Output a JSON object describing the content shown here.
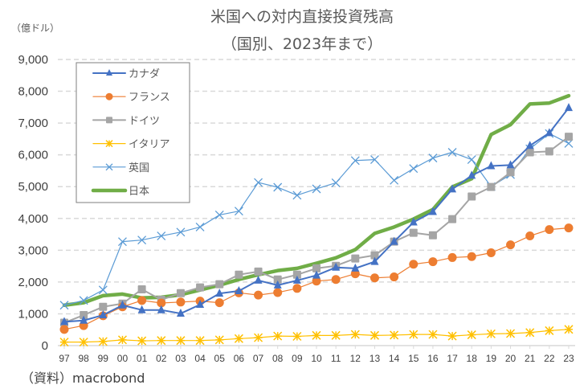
{
  "chart_data": {
    "type": "line",
    "title": "米国への対内直接投資残高",
    "subtitle": "（国別、2023年まで）",
    "ylabel": "（億ドル）",
    "xlabel": "",
    "source": "（資料）macrobond",
    "ylim": [
      0,
      9000
    ],
    "yticks": [
      0,
      1000,
      2000,
      3000,
      4000,
      5000,
      6000,
      7000,
      8000,
      9000
    ],
    "ytick_labels": [
      "0",
      "1,000",
      "2,000",
      "3,000",
      "4,000",
      "5,000",
      "6,000",
      "7,000",
      "8,000",
      "9,000"
    ],
    "grid": "horizontal-dashed",
    "legend_position": "top-left",
    "categories": [
      "97",
      "98",
      "99",
      "00",
      "01",
      "02",
      "03",
      "04",
      "05",
      "06",
      "07",
      "08",
      "09",
      "10",
      "11",
      "12",
      "13",
      "14",
      "15",
      "16",
      "17",
      "18",
      "19",
      "20",
      "21",
      "22",
      "23"
    ],
    "series": [
      {
        "name": "カナダ",
        "color": "#4472C4",
        "marker": "triangle",
        "width": 2,
        "values": [
          750,
          790,
          960,
          1270,
          1120,
          1120,
          1010,
          1290,
          1640,
          1720,
          2050,
          1900,
          2050,
          2210,
          2460,
          2430,
          2640,
          3270,
          3880,
          4210,
          4920,
          5350,
          5650,
          5680,
          6290,
          6690,
          7480
        ]
      },
      {
        "name": "フランス",
        "color": "#ED7D31",
        "marker": "circle",
        "width": 1.2,
        "values": [
          510,
          630,
          940,
          1220,
          1420,
          1340,
          1370,
          1400,
          1350,
          1660,
          1590,
          1670,
          1800,
          2030,
          2080,
          2260,
          2130,
          2160,
          2560,
          2640,
          2770,
          2800,
          2920,
          3170,
          3450,
          3650,
          3700
        ]
      },
      {
        "name": "ドイツ",
        "color": "#A5A5A5",
        "marker": "square",
        "width": 2,
        "values": [
          720,
          960,
          1220,
          1320,
          1770,
          1440,
          1650,
          1830,
          1930,
          2230,
          2330,
          2080,
          2230,
          2430,
          2510,
          2740,
          2840,
          3270,
          3550,
          3470,
          3980,
          4690,
          4990,
          5450,
          6080,
          6110,
          6570
        ]
      },
      {
        "name": "イタリア",
        "color": "#FFC000",
        "marker": "star",
        "width": 1.2,
        "values": [
          110,
          110,
          130,
          180,
          150,
          160,
          160,
          160,
          180,
          220,
          250,
          300,
          290,
          320,
          320,
          350,
          320,
          330,
          350,
          350,
          300,
          340,
          370,
          380,
          410,
          470,
          510
        ]
      },
      {
        "name": "英国",
        "color": "#5B9BD5",
        "marker": "x",
        "width": 1.2,
        "values": [
          1270,
          1420,
          1750,
          3270,
          3320,
          3450,
          3570,
          3730,
          4110,
          4230,
          5130,
          4980,
          4730,
          4930,
          5120,
          5820,
          5850,
          5200,
          5570,
          5900,
          6080,
          5850,
          5000,
          5380,
          6190,
          6670,
          6360
        ]
      },
      {
        "name": "日本",
        "color": "#70AD47",
        "marker": "none",
        "width": 4.5,
        "values": [
          1270,
          1350,
          1570,
          1620,
          1500,
          1520,
          1600,
          1750,
          1900,
          2080,
          2230,
          2360,
          2430,
          2590,
          2760,
          3020,
          3530,
          3730,
          3980,
          4280,
          4990,
          5250,
          6640,
          6950,
          7600,
          7630,
          7860
        ]
      }
    ]
  }
}
